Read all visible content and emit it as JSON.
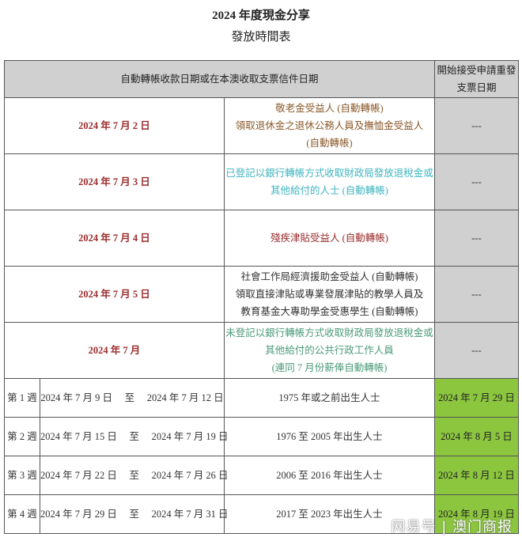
{
  "title": {
    "line1": "2024 年度現金分享",
    "line2": "發放時間表"
  },
  "header": {
    "left": "自動轉帳收款日期或在本澳收取支票信件日期",
    "right": "開始接受申請重發支票日期"
  },
  "colors": {
    "date": "#9b2c2c",
    "header_bg": "#d0d0d0",
    "green": "#8cc63f"
  },
  "rows": [
    {
      "date": "2024 年 7 月 2 日",
      "lines": [
        "敬老金受益人 (自動轉帳)",
        "領取退休金之退休公務人員及撫恤金受益人",
        "(自動轉帳)"
      ],
      "color": "#8b5a2b",
      "reissue": "---"
    },
    {
      "date": "2024 年 7 月 3 日",
      "lines": [
        "已登記以銀行轉帳方式收取財政局發放退稅金或",
        "其他給付的人士 (自動轉帳)"
      ],
      "color": "#3fb5c0",
      "reissue": "---"
    },
    {
      "date": "2024 年 7 月 4 日",
      "lines": [
        "殘疾津貼受益人 (自動轉帳)"
      ],
      "color": "#9b2c2c",
      "reissue": "---"
    },
    {
      "date": "2024 年 7 月 5 日",
      "lines": [
        "社會工作局經濟援助金受益人 (自動轉帳)",
        "領取直接津貼或專業發展津貼的教學人員及",
        "教育基金大專助學金受惠學生 (自動轉帳)"
      ],
      "color": "#333333",
      "reissue": "---"
    },
    {
      "date": "2024 年 7 月",
      "lines": [
        "未登記以銀行轉帳方式收取財政局發放退稅金或",
        "其他給付的公共行政工作人員",
        "(連同 7 月份薪俸自動轉帳)"
      ],
      "color": "#4a9a7a",
      "reissue": "---"
    }
  ],
  "weeks": [
    {
      "week": "第 1 週",
      "range": "2024 年 7 月 9 日　 至　 2024 年 7 月 12 日",
      "group": "1975 年或之前出生人士",
      "reissue": "2024 年 7 月 29 日"
    },
    {
      "week": "第 2 週",
      "range": "2024 年 7 月 15 日　 至　 2024 年 7 月 19 日",
      "group": "1976 至 2005 年出生人士",
      "reissue": "2024 年 8 月 5 日"
    },
    {
      "week": "第 3 週",
      "range": "2024 年 7 月 22 日　 至　 2024 年 7 月 26 日",
      "group": "2006 至 2016 年出生人士",
      "reissue": "2024 年 8 月 12 日"
    },
    {
      "week": "第 4 週",
      "range": "2024 年 7 月 29 日　 至　 2024 年 7 月 31 日",
      "group": "2017 至 2023 年出生人士",
      "reissue": "2024 年 8 月 19 日"
    }
  ],
  "watermark": "网易号 | 澳门商报"
}
